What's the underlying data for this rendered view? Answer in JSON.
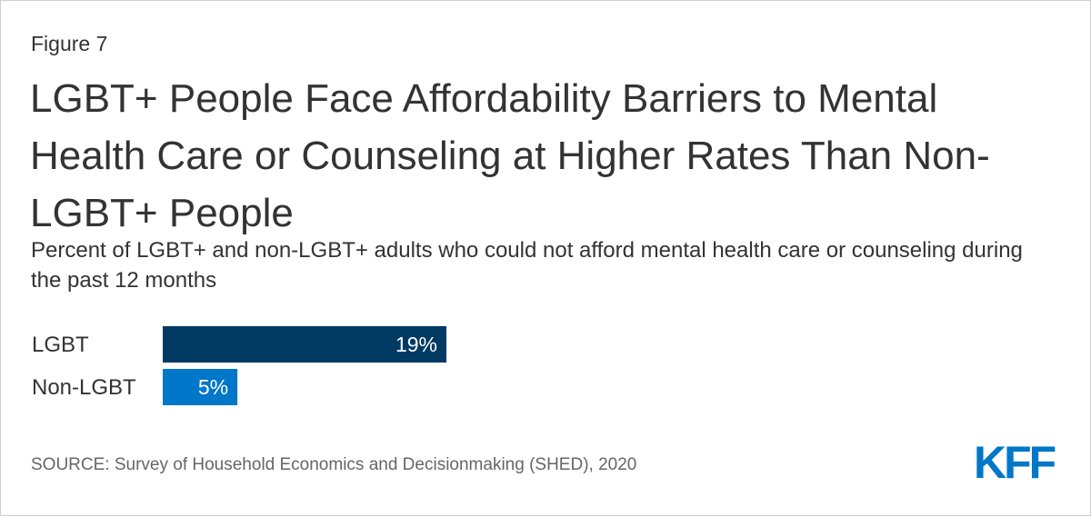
{
  "figure_label": "Figure 7",
  "title": "LGBT+ People Face Affordability Barriers to Mental Health Care or Counseling at Higher Rates Than Non-LGBT+ People",
  "subtitle": "Percent of LGBT+ and non-LGBT+ adults who could not afford mental health care or counseling during the past 12 months",
  "source": "SOURCE: Survey of Household Economics and Decisionmaking (SHED), 2020",
  "logo": {
    "text": "KFF",
    "color": "#0077c8"
  },
  "chart_data": {
    "type": "bar",
    "orientation": "horizontal",
    "title": "LGBT+ People Face Affordability Barriers to Mental Health Care or Counseling at Higher Rates Than Non-LGBT+ People",
    "subtitle": "Percent of LGBT+ and non-LGBT+ adults who could not afford mental health care or counseling during the past 12 months",
    "categories": [
      "LGBT",
      "Non-LGBT"
    ],
    "values": [
      19,
      5
    ],
    "value_labels": [
      "19%",
      "5%"
    ],
    "colors": [
      "#003a63",
      "#0077c8"
    ],
    "xlabel": "",
    "ylabel": "",
    "xlim": [
      0,
      19
    ],
    "grid": false,
    "legend": "none"
  }
}
